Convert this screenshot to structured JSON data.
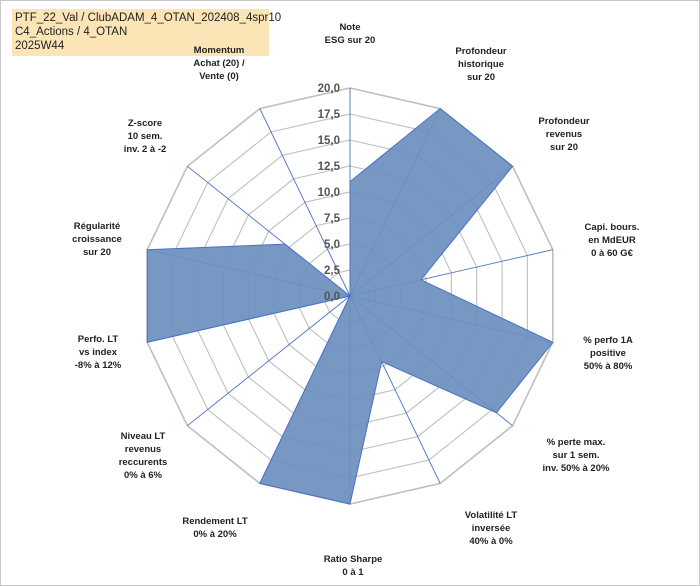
{
  "chart_data": {
    "type": "radar",
    "title_lines": [
      "PTF_22_Val / ClubADAM_4_OTAN_202408_4spr10",
      "C4_Actions / 4_OTAN",
      "2025W44"
    ],
    "rmax": 20,
    "ticks": [
      "0,0",
      "2,5",
      "5,0",
      "7,5",
      "10,0",
      "12,5",
      "15,0",
      "17,5",
      "20,0"
    ],
    "tick_values": [
      0,
      2.5,
      5,
      7.5,
      10,
      12.5,
      15,
      17.5,
      20
    ],
    "categories": [
      [
        "Note",
        "ESG sur 20"
      ],
      [
        "Profondeur",
        "historique",
        "sur 20"
      ],
      [
        "Profondeur",
        "revenus",
        "sur 20"
      ],
      [
        "Capi. bours.",
        "en MdEUR",
        "0 à 60 G€"
      ],
      [
        "% perfo 1A",
        "positive",
        "50% à 80%"
      ],
      [
        "% perte max.",
        "sur 1 sem.",
        "inv. 50% à 20%"
      ],
      [
        "Volatilité LT",
        "inversée",
        "40% à 0%"
      ],
      [
        "Ratio Sharpe",
        "0 à 1"
      ],
      [
        "Rendement LT",
        "0% à 20%"
      ],
      [
        "Niveau LT",
        "revenus",
        "reccurents",
        "0% à 6%"
      ],
      [
        "Perfo. LT",
        "vs index",
        "-8% à 12%"
      ],
      [
        "Régularité",
        "croissance",
        "sur 20"
      ],
      [
        "Z-score",
        "10 sem.",
        "inv. 2 à -2"
      ],
      [
        "Momentum",
        "Achat (20) /",
        "Vente (0)"
      ]
    ],
    "values": [
      11,
      20,
      20,
      7,
      20,
      18,
      7,
      20,
      20,
      0,
      20,
      20,
      8,
      0
    ],
    "colors": {
      "fill": "#6b8fbd",
      "stroke": "#4a72c4",
      "grid": "#bfbfbf",
      "highlight_bg": "#fbe5b6"
    }
  }
}
